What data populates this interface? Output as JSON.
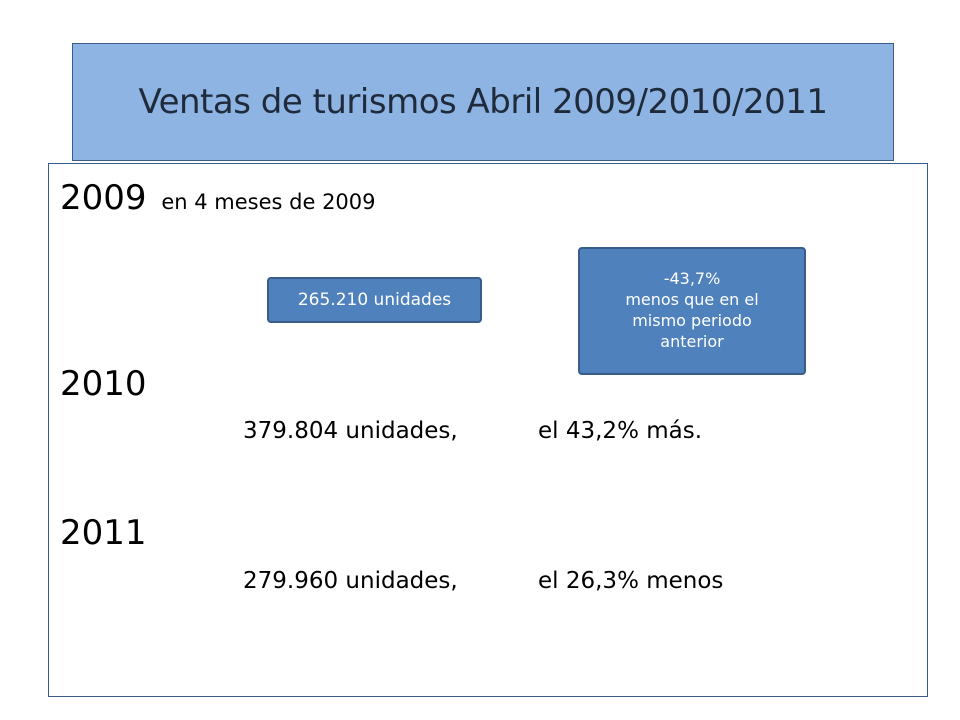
{
  "title": "Ventas de turismos Abril 2009/2010/2011",
  "sections": [
    {
      "year": "2009",
      "subtitle": "en 4 meses de 2009"
    },
    {
      "year": "2010",
      "units": "379.804 unidades,",
      "change": "el 43,2% más."
    },
    {
      "year": "2011",
      "units": "279.960 unidades,",
      "change": "el 26,3% menos"
    }
  ],
  "callouts": {
    "units_2009": "265.210 unidades",
    "change_2009": {
      "percent": "-43,7%",
      "line1": "menos que en el",
      "line2": "mismo periodo",
      "line3": "anterior"
    }
  }
}
